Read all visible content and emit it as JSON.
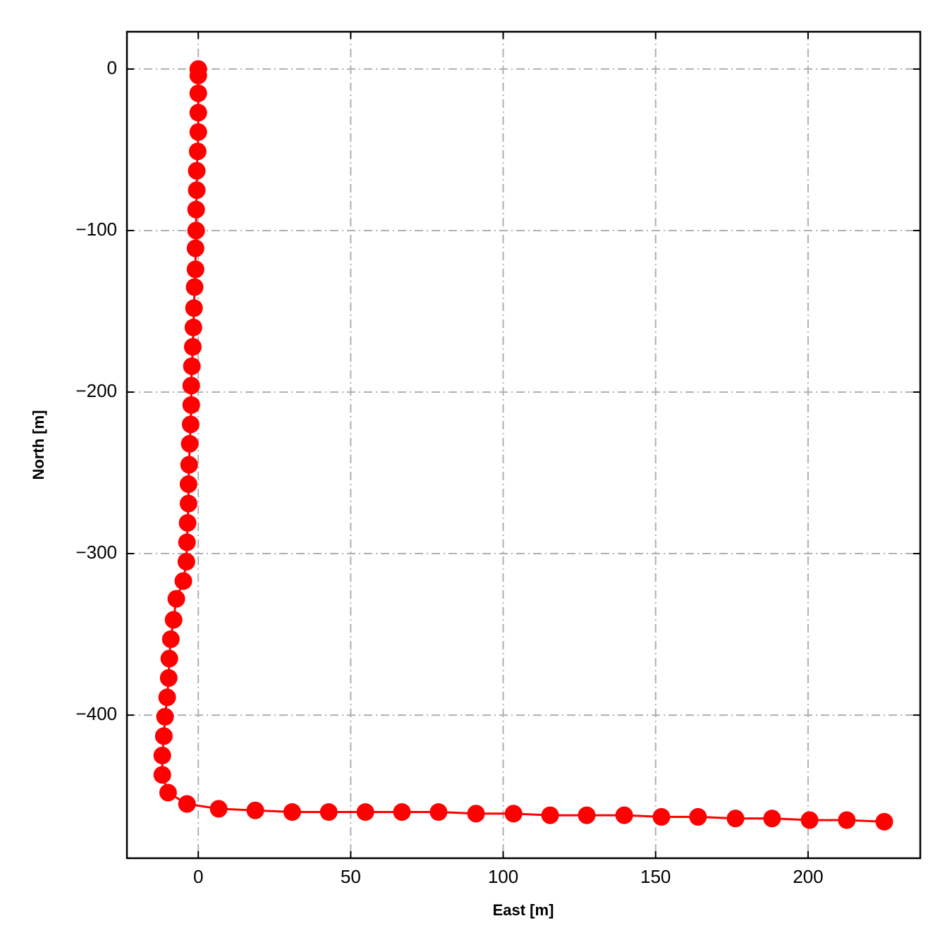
{
  "chart_data": {
    "type": "line",
    "xlabel": "East [m]",
    "ylabel": "North [m]",
    "x": [
      0,
      0,
      0,
      0,
      0,
      -0.2,
      -0.5,
      -0.5,
      -0.7,
      -0.7,
      -0.9,
      -0.9,
      -1.2,
      -1.4,
      -1.6,
      -1.8,
      -2.1,
      -2.3,
      -2.3,
      -2.5,
      -2.8,
      -3.0,
      -3.2,
      -3.2,
      -3.5,
      -3.7,
      -3.9,
      -4.9,
      -7.2,
      -8.1,
      -9.0,
      -9.5,
      -9.7,
      -10.2,
      -10.9,
      -11.3,
      -11.8,
      -11.8,
      -9.9,
      -3.7,
      6.7,
      18.7,
      30.8,
      42.8,
      54.8,
      66.8,
      78.8,
      91.1,
      103.4,
      115.4,
      127.4,
      139.7,
      151.9,
      163.9,
      176.2,
      188.2,
      200.5,
      212.7,
      225.0
    ],
    "values": [
      0,
      -4,
      -15,
      -27,
      -39,
      -51,
      -63,
      -75,
      -87,
      -100,
      -111,
      -124,
      -135,
      -148,
      -160,
      -172,
      -184,
      -196,
      -208,
      -220,
      -232,
      -245,
      -257,
      -269,
      -281,
      -293,
      -305,
      -317,
      -328,
      -341,
      -353,
      -365,
      -377,
      -389,
      -401,
      -413,
      -425,
      -437,
      -448,
      -455,
      -458,
      -459,
      -460,
      -460,
      -460,
      -460,
      -460,
      -461,
      -461,
      -462,
      -462,
      -462,
      -463,
      -463,
      -464,
      -464,
      -465,
      -465,
      -466
    ],
    "color": "#ff0000",
    "xlim": [
      -23.4,
      236.8
    ],
    "xticks": [
      0,
      50,
      100,
      150,
      200
    ],
    "ylim": [
      -488.6,
      23.1
    ],
    "yticks": [
      {
        "value": 0,
        "label": "0"
      },
      {
        "value": -100,
        "label": "−100"
      },
      {
        "value": -200,
        "label": "−200"
      },
      {
        "value": -300,
        "label": "−300"
      },
      {
        "value": -400,
        "label": "−400"
      }
    ],
    "grid": true
  }
}
